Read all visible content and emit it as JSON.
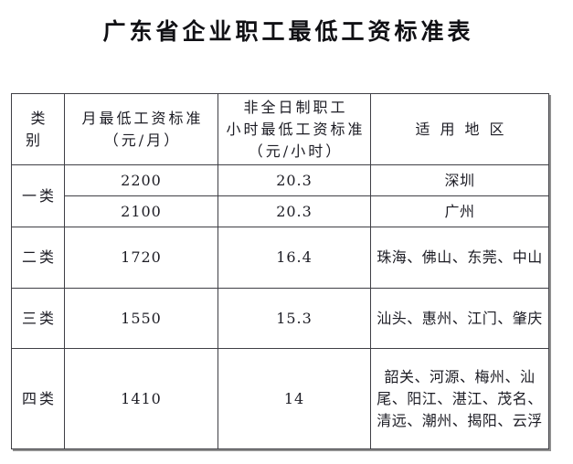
{
  "title": "广东省企业职工最低工资标准表",
  "table": {
    "headers": {
      "category": "类别",
      "monthly_line1": "月最低工资标准",
      "monthly_line2": "（元/月）",
      "hourly_line1": "非全日制职工",
      "hourly_line2": "小时最低工资标准",
      "hourly_line3": "（元/小时）",
      "regions": "适用地区"
    },
    "rows": [
      {
        "category": "一类",
        "monthly": "2200",
        "hourly": "20.3",
        "regions": "深圳"
      },
      {
        "monthly": "2100",
        "hourly": "20.3",
        "regions": "广州"
      },
      {
        "category": "二类",
        "monthly": "1720",
        "hourly": "16.4",
        "regions": "珠海、佛山、东莞、中山"
      },
      {
        "category": "三类",
        "monthly": "1550",
        "hourly": "15.3",
        "regions": "汕头、惠州、江门、肇庆"
      },
      {
        "category": "四类",
        "monthly": "1410",
        "hourly": "14",
        "regions": "韶关、河源、梅州、汕尾、阳江、湛江、茂名、清远、潮州、揭阳、云浮"
      }
    ]
  },
  "colors": {
    "border": "#3f3f45",
    "text": "#1c1c24",
    "shadow": "#8f8f8f",
    "background": "#ffffff"
  }
}
